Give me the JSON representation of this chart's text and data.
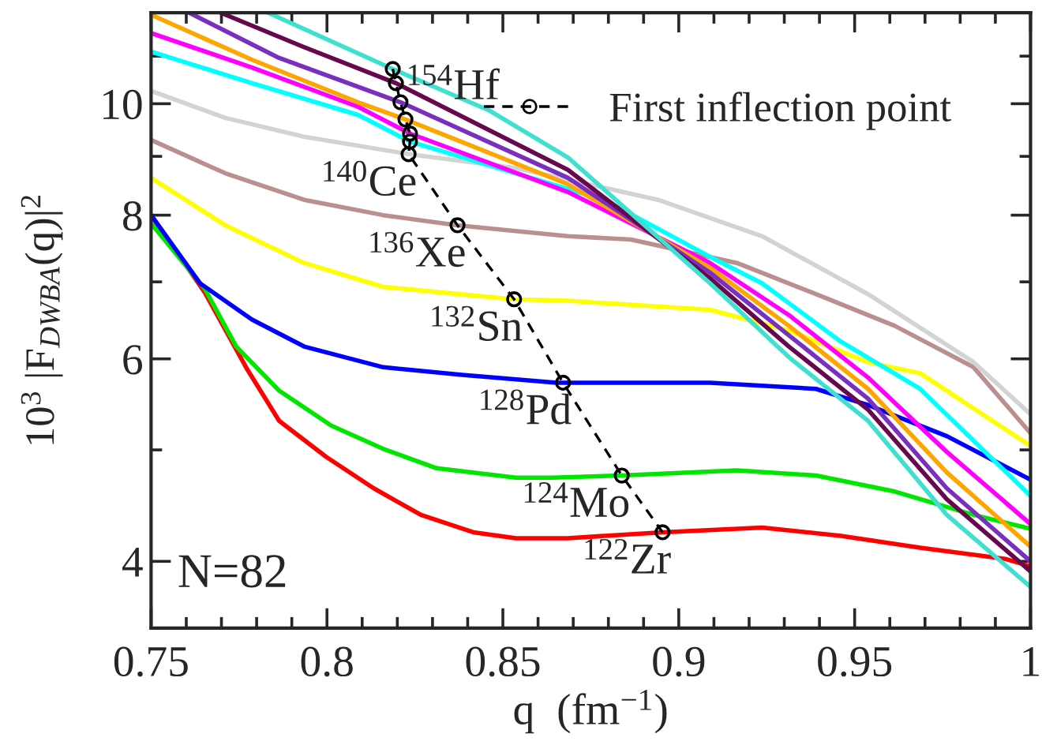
{
  "chart_data": {
    "type": "line",
    "xlabel": "q  (fm$^{−1}$)",
    "ylabel": "10$^{3}$ |F$_{DWBA}$(q)|$^{2}$",
    "log": "y",
    "xlim": [
      0.75,
      1.0
    ],
    "ylim": [
      3.5,
      12
    ],
    "xticks": [
      0.75,
      {
        "value": 0.76,
        "label": null
      },
      {
        "value": 0.77,
        "label": null
      },
      {
        "value": 0.78,
        "label": null
      },
      {
        "value": 0.79,
        "label": null
      },
      0.8,
      {
        "value": 0.81,
        "label": null
      },
      {
        "value": 0.82,
        "label": null
      },
      {
        "value": 0.83,
        "label": null
      },
      {
        "value": 0.84,
        "label": null
      },
      0.85,
      {
        "value": 0.86,
        "label": null
      },
      {
        "value": 0.87,
        "label": null
      },
      {
        "value": 0.88,
        "label": null
      },
      {
        "value": 0.89,
        "label": null
      },
      0.9,
      {
        "value": 0.91,
        "label": null
      },
      {
        "value": 0.92,
        "label": null
      },
      {
        "value": 0.93,
        "label": null
      },
      {
        "value": 0.94,
        "label": null
      },
      0.95,
      {
        "value": 0.96,
        "label": null
      },
      {
        "value": 0.97,
        "label": null
      },
      {
        "value": 0.98,
        "label": null
      },
      {
        "value": 0.99,
        "label": null
      },
      1
    ],
    "yticks": [
      4,
      {
        "value": 5,
        "label": null
      },
      6,
      {
        "value": 7,
        "label": null
      },
      8,
      {
        "value": 9,
        "label": null
      },
      10,
      {
        "value": 11,
        "label": null
      }
    ],
    "grid": false,
    "legend": "top right",
    "series": [
      {
        "color": "#ff0000",
        "x": [
          0.75,
          0.7653,
          0.7774,
          0.7864,
          0.7998,
          0.8133,
          0.8267,
          0.8416,
          0.8537,
          0.8685,
          0.8954,
          0.9237,
          0.9461,
          0.9686,
          0.9928,
          1.0
        ],
        "values": [
          8.0,
          6.85,
          5.87,
          5.3,
          4.93,
          4.63,
          4.39,
          4.24,
          4.19,
          4.19,
          4.24,
          4.28,
          4.21,
          4.11,
          4.02,
          3.96
        ]
      },
      {
        "color": "#00e600",
        "x": [
          0.75,
          0.7653,
          0.7742,
          0.7864,
          0.8012,
          0.816,
          0.8312,
          0.8537,
          0.864,
          0.8838,
          0.9165,
          0.939,
          0.9614,
          0.9838,
          1.0
        ],
        "values": [
          7.87,
          6.9,
          6.15,
          5.63,
          5.25,
          5.01,
          4.82,
          4.73,
          4.73,
          4.75,
          4.8,
          4.75,
          4.6,
          4.39,
          4.27
        ]
      },
      {
        "color": "#0000ff",
        "x": [
          0.75,
          0.7639,
          0.7787,
          0.7935,
          0.816,
          0.8384,
          0.8653,
          0.9089,
          0.939,
          0.9538,
          0.9762,
          1.0
        ],
        "values": [
          8.0,
          6.98,
          6.49,
          6.15,
          5.9,
          5.81,
          5.72,
          5.72,
          5.65,
          5.47,
          5.14,
          4.71
        ]
      },
      {
        "color": "#ffff00",
        "x": [
          0.75,
          0.7711,
          0.7935,
          0.816,
          0.8532,
          0.8685,
          0.9089,
          0.9313,
          0.9538,
          0.9686,
          1.0
        ],
        "values": [
          8.62,
          7.84,
          7.27,
          6.93,
          6.76,
          6.74,
          6.62,
          6.35,
          5.96,
          5.83,
          5.04
        ]
      },
      {
        "color": "#bc8f8f",
        "x": [
          0.75,
          0.7711,
          0.7935,
          0.816,
          0.8371,
          0.8685,
          0.8864,
          0.9165,
          0.939,
          0.9614,
          0.9838,
          1.0
        ],
        "values": [
          9.3,
          8.7,
          8.25,
          8.0,
          7.84,
          7.67,
          7.62,
          7.27,
          6.83,
          6.41,
          5.9,
          5.17
        ]
      },
      {
        "color": "#d3d3d3",
        "x": [
          0.75,
          0.7711,
          0.7935,
          0.8232,
          0.8537,
          0.864,
          0.8941,
          0.9237,
          0.9538,
          0.9838,
          1.0
        ],
        "values": [
          10.26,
          9.72,
          9.36,
          9.04,
          8.79,
          8.65,
          8.25,
          7.67,
          6.83,
          5.96,
          5.37
        ]
      },
      {
        "color": "#00ffff",
        "x": [
          0.75,
          0.7787,
          0.8088,
          0.8236,
          0.8685,
          0.8788,
          0.9089,
          0.9237,
          0.9461,
          0.9686,
          1.0
        ],
        "values": [
          11.1,
          10.42,
          9.78,
          9.27,
          8.43,
          8.25,
          7.36,
          6.98,
          6.21,
          5.65,
          4.56
        ]
      },
      {
        "color": "#ff00ff",
        "x": [
          0.75,
          0.7787,
          0.8088,
          0.8236,
          0.8685,
          0.9089,
          0.9313,
          0.9538,
          0.9762,
          1.0
        ],
        "values": [
          11.52,
          10.75,
          9.94,
          9.42,
          8.38,
          7.27,
          6.55,
          5.78,
          4.98,
          4.31
        ]
      },
      {
        "color": "#ffa500",
        "x": [
          0.75,
          0.7787,
          0.8088,
          0.8223,
          0.8685,
          0.9089,
          0.9313,
          0.9538,
          0.9762,
          1.0
        ],
        "values": [
          11.95,
          10.92,
          10.03,
          9.69,
          8.51,
          7.2,
          6.41,
          5.65,
          4.78,
          4.12
        ]
      },
      {
        "color": "#7b2fbf",
        "x": [
          0.7608,
          0.7864,
          0.8209,
          0.8685,
          0.9089,
          0.9313,
          0.9538,
          0.9762,
          1.0
        ],
        "values": [
          12.0,
          10.96,
          10.03,
          8.62,
          7.13,
          6.29,
          5.54,
          4.63,
          4.0
        ]
      },
      {
        "color": "#67074e",
        "x": [
          0.7697,
          0.7935,
          0.8196,
          0.8685,
          0.9089,
          0.9313,
          0.9538,
          0.9762,
          1.0
        ],
        "values": [
          12.0,
          11.2,
          10.42,
          8.76,
          7.05,
          6.15,
          5.42,
          4.53,
          3.92
        ]
      },
      {
        "color": "#40e0d0",
        "x": [
          0.7832,
          0.8187,
          0.846,
          0.8685,
          0.9089,
          0.9313,
          0.9538,
          0.9762,
          1.0
        ],
        "values": [
          12.0,
          10.72,
          9.87,
          8.98,
          6.98,
          6.02,
          5.3,
          4.39,
          3.8
        ]
      },
      {
        "name": "First inflection point",
        "color": "#000000",
        "line_style": "dashed",
        "marker": "circle",
        "x": [
          0.8187,
          0.8196,
          0.8209,
          0.8223,
          0.8236,
          0.8236,
          0.8232,
          0.8371,
          0.8532,
          0.8671,
          0.8838,
          0.8954
        ],
        "values": [
          10.72,
          10.42,
          10.03,
          9.69,
          9.42,
          9.27,
          9.04,
          7.84,
          6.76,
          5.72,
          4.75,
          4.24
        ]
      }
    ],
    "annotations": [
      {
        "text": "$^{154}$Hf",
        "x": 0.8187,
        "y": 10.72
      },
      {
        "text": "$^{140}$Ce",
        "x": 0.8232,
        "y": 9.04
      },
      {
        "text": "$^{136}$Xe",
        "x": 0.8371,
        "y": 7.84
      },
      {
        "text": "$^{132}$Sn",
        "x": 0.8532,
        "y": 6.76
      },
      {
        "text": "$^{128}$Pd",
        "x": 0.8671,
        "y": 5.72
      },
      {
        "text": "$^{124}$Mo",
        "x": 0.8838,
        "y": 4.75
      },
      {
        "text": "$^{122}$Zr",
        "x": 0.8954,
        "y": 4.24
      },
      "N=82"
    ]
  }
}
